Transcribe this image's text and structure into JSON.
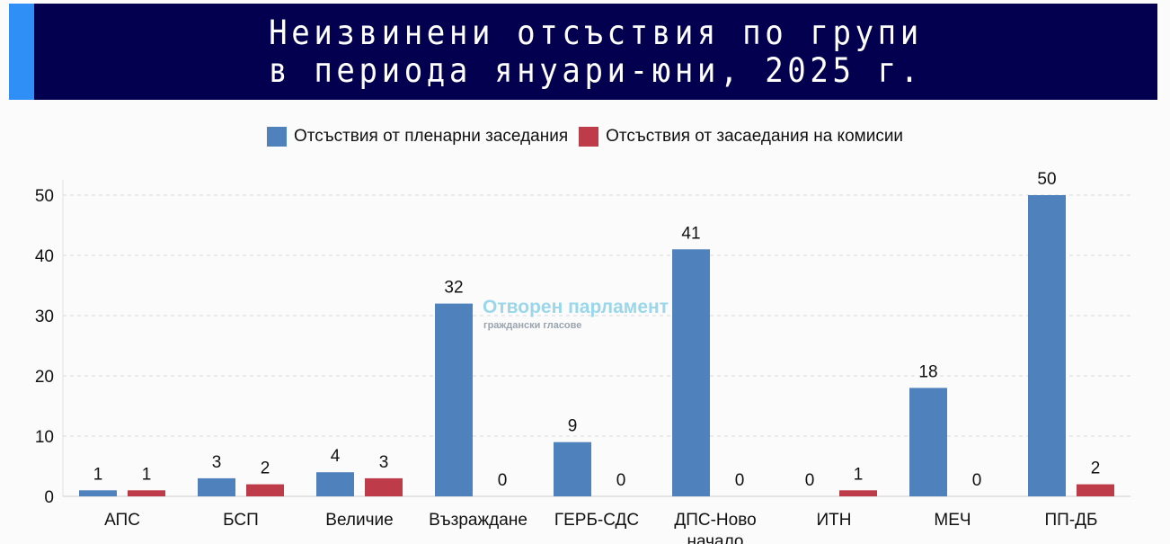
{
  "header": {
    "title_line1": "Неизвинени отсъствия по групи",
    "title_line2": "в периода януари-юни, 2025 г."
  },
  "watermark": {
    "name": "Отворен парламент",
    "tagline": "граждански гласове"
  },
  "chart_data": {
    "type": "bar",
    "title": "Неизвинени отсъствия по групи в периода януари-юни, 2025 г.",
    "categories": [
      "АПС",
      "БСП",
      "Величие",
      "Възраждане",
      "ГЕРБ-СДС",
      "ДПС-Ново начало",
      "ИТН",
      "МЕЧ",
      "ПП-ДБ"
    ],
    "series": [
      {
        "name": "Отсъствия от пленарни заседания",
        "color": "#4f81bd",
        "values": [
          1,
          3,
          4,
          32,
          9,
          41,
          0,
          18,
          50
        ]
      },
      {
        "name": "Отсъствия от засаедания на комисии",
        "color": "#be3b4a",
        "values": [
          1,
          2,
          3,
          0,
          0,
          0,
          1,
          0,
          2
        ]
      }
    ],
    "yticks": [
      0,
      10,
      20,
      30,
      40,
      50
    ],
    "ylim": [
      0,
      52
    ],
    "grid": true,
    "legend": "top",
    "data_labels": true
  }
}
